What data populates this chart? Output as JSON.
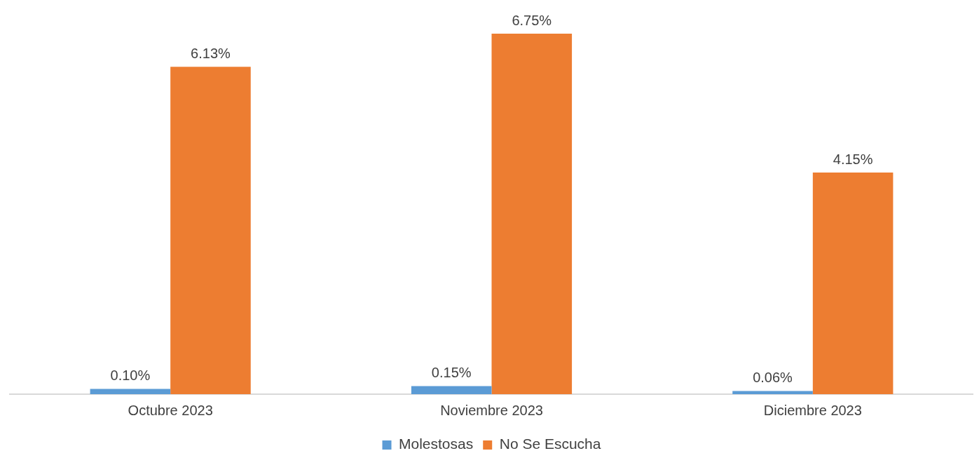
{
  "chart_data": {
    "type": "bar",
    "categories": [
      "Octubre 2023",
      "Noviembre 2023",
      "Diciembre 2023"
    ],
    "series": [
      {
        "name": "Molestosas",
        "color": "#5b9bd5",
        "values": [
          0.1,
          0.15,
          0.06
        ],
        "value_labels": [
          "0.10%",
          "0.15%",
          "0.06%"
        ]
      },
      {
        "name": "No Se Escucha",
        "color": "#ed7d31",
        "values": [
          6.13,
          6.75,
          4.15
        ],
        "value_labels": [
          "6.13%",
          "6.75%",
          "4.15%"
        ]
      }
    ],
    "grid": false,
    "legend": "bottom"
  }
}
